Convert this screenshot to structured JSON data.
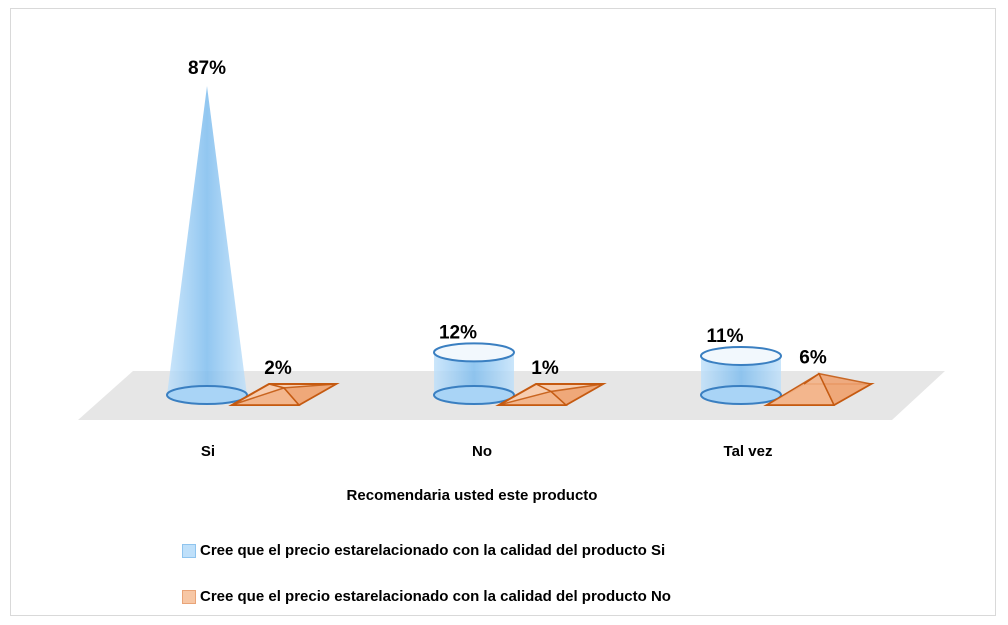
{
  "chart_data": {
    "type": "bar",
    "shapes": [
      "cone",
      "cylinder",
      "pyramid"
    ],
    "categories": [
      "Si",
      "No",
      "Tal vez"
    ],
    "xlabel": "Recomendaria usted este producto",
    "ylabel": "",
    "ylim": [
      0,
      100
    ],
    "grid": false,
    "legend_position": "bottom",
    "series": [
      {
        "name": "Cree que el precio estarelacionado con la calidad del producto Si",
        "values": [
          87,
          12,
          11
        ],
        "labels": [
          "87%",
          "12%",
          "11%"
        ],
        "color": "#9fd0f5",
        "stroke": "#3a7fc1"
      },
      {
        "name": "Cree que el precio estarelacionado con la calidad del producto No",
        "values": [
          2,
          1,
          6
        ],
        "labels": [
          "2%",
          "1%",
          "6%"
        ],
        "color": "#f3b48a",
        "stroke": "#c55a11"
      }
    ],
    "floor_color": "#e6e6e6"
  }
}
